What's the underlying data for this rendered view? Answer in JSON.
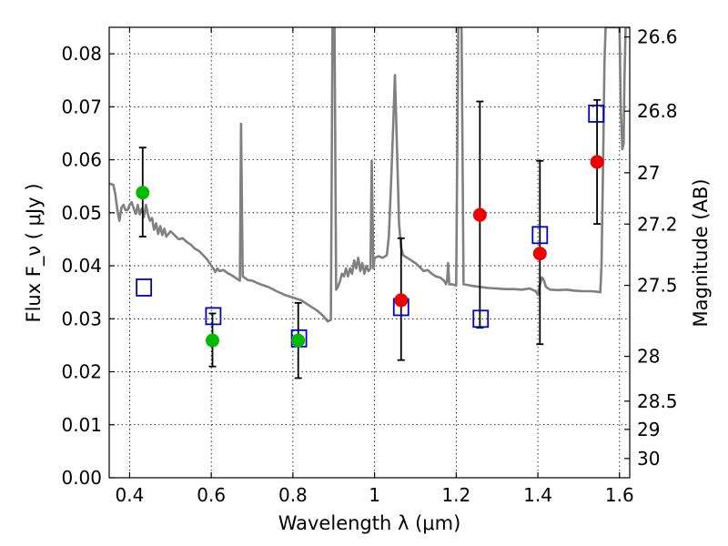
{
  "chart_data": {
    "type": "scatter",
    "title": "",
    "xlabel": "Wavelength  λ (μm)",
    "ylabel": "Flux  F_ν  ( μJy )",
    "ylabel_right": "Magnitude (AB)",
    "xlim": [
      0.35,
      1.625
    ],
    "ylim": [
      0.0,
      0.085
    ],
    "grid": true,
    "x_ticks": [
      0.4,
      0.6,
      0.8,
      1.0,
      1.2,
      1.4,
      1.6
    ],
    "x_tick_labels": [
      "0.4",
      "0.6",
      "0.8",
      "1",
      "1.2",
      "1.4",
      "1.6"
    ],
    "y_ticks": [
      0.0,
      0.01,
      0.02,
      0.03,
      0.04,
      0.05,
      0.06,
      0.07,
      0.08
    ],
    "y_tick_labels": [
      "0.00",
      "0.01",
      "0.02",
      "0.03",
      "0.04",
      "0.05",
      "0.06",
      "0.07",
      "0.08"
    ],
    "right_axis_ticks": [
      {
        "label": "26.6",
        "mag": 26.6
      },
      {
        "label": "26.8",
        "mag": 26.8
      },
      {
        "label": "27",
        "mag": 27.0
      },
      {
        "label": "27.2",
        "mag": 27.2
      },
      {
        "label": "27.5",
        "mag": 27.5
      },
      {
        "label": "28",
        "mag": 28.0
      },
      {
        "label": "28.5",
        "mag": 28.5
      },
      {
        "label": "29",
        "mag": 29.0
      },
      {
        "label": "30",
        "mag": 30.0
      }
    ],
    "series": [
      {
        "marker": "line",
        "color": "#808080",
        "points": [
          [
            0.35,
            0.0555
          ],
          [
            0.36,
            0.0553
          ],
          [
            0.365,
            0.0535
          ],
          [
            0.37,
            0.0505
          ],
          [
            0.375,
            0.0485
          ],
          [
            0.38,
            0.051
          ],
          [
            0.385,
            0.0515
          ],
          [
            0.39,
            0.0505
          ],
          [
            0.395,
            0.0505
          ],
          [
            0.4,
            0.0515
          ],
          [
            0.405,
            0.052
          ],
          [
            0.41,
            0.0508
          ],
          [
            0.415,
            0.0498
          ],
          [
            0.42,
            0.0515
          ],
          [
            0.425,
            0.0497
          ],
          [
            0.43,
            0.0508
          ],
          [
            0.435,
            0.0492
          ],
          [
            0.44,
            0.0515
          ],
          [
            0.445,
            0.0497
          ],
          [
            0.45,
            0.0485
          ],
          [
            0.455,
            0.049
          ],
          [
            0.46,
            0.0468
          ],
          [
            0.465,
            0.048
          ],
          [
            0.47,
            0.046
          ],
          [
            0.475,
            0.0475
          ],
          [
            0.48,
            0.0458
          ],
          [
            0.485,
            0.047
          ],
          [
            0.49,
            0.0455
          ],
          [
            0.495,
            0.046
          ],
          [
            0.5,
            0.0465
          ],
          [
            0.51,
            0.0458
          ],
          [
            0.52,
            0.045
          ],
          [
            0.53,
            0.0452
          ],
          [
            0.54,
            0.0445
          ],
          [
            0.55,
            0.044
          ],
          [
            0.56,
            0.0432
          ],
          [
            0.57,
            0.0428
          ],
          [
            0.58,
            0.042
          ],
          [
            0.59,
            0.0412
          ],
          [
            0.6,
            0.04
          ],
          [
            0.605,
            0.0395
          ],
          [
            0.61,
            0.0388
          ],
          [
            0.615,
            0.0395
          ],
          [
            0.62,
            0.039
          ],
          [
            0.63,
            0.0392
          ],
          [
            0.64,
            0.0386
          ],
          [
            0.65,
            0.0382
          ],
          [
            0.66,
            0.0377
          ],
          [
            0.67,
            0.0372
          ],
          [
            0.673,
            0.0668
          ],
          [
            0.677,
            0.038
          ],
          [
            0.69,
            0.0373
          ],
          [
            0.7,
            0.0372
          ],
          [
            0.72,
            0.0365
          ],
          [
            0.74,
            0.036
          ],
          [
            0.76,
            0.0352
          ],
          [
            0.78,
            0.0345
          ],
          [
            0.8,
            0.034
          ],
          [
            0.82,
            0.0335
          ],
          [
            0.84,
            0.0325
          ],
          [
            0.86,
            0.0315
          ],
          [
            0.875,
            0.0305
          ],
          [
            0.885,
            0.0295
          ],
          [
            0.893,
            0.0298
          ],
          [
            0.897,
            0.085
          ],
          [
            0.902,
            0.085
          ],
          [
            0.906,
            0.0355
          ],
          [
            0.91,
            0.036
          ],
          [
            0.915,
            0.037
          ],
          [
            0.92,
            0.0385
          ],
          [
            0.925,
            0.038
          ],
          [
            0.93,
            0.0395
          ],
          [
            0.935,
            0.038
          ],
          [
            0.94,
            0.0395
          ],
          [
            0.945,
            0.0385
          ],
          [
            0.95,
            0.041
          ],
          [
            0.955,
            0.0395
          ],
          [
            0.96,
            0.0415
          ],
          [
            0.965,
            0.039
          ],
          [
            0.97,
            0.0405
          ],
          [
            0.975,
            0.0385
          ],
          [
            0.98,
            0.04
          ],
          [
            0.985,
            0.039
          ],
          [
            0.99,
            0.0395
          ],
          [
            0.993,
            0.0598
          ],
          [
            0.997,
            0.0395
          ],
          [
            1.0,
            0.0415
          ],
          [
            1.01,
            0.0418
          ],
          [
            1.02,
            0.0415
          ],
          [
            1.03,
            0.042
          ],
          [
            1.035,
            0.0455
          ],
          [
            1.04,
            0.055
          ],
          [
            1.045,
            0.065
          ],
          [
            1.05,
            0.076
          ],
          [
            1.055,
            0.062
          ],
          [
            1.06,
            0.048
          ],
          [
            1.065,
            0.0435
          ],
          [
            1.07,
            0.042
          ],
          [
            1.08,
            0.0415
          ],
          [
            1.09,
            0.041
          ],
          [
            1.1,
            0.0405
          ],
          [
            1.11,
            0.0398
          ],
          [
            1.12,
            0.039
          ],
          [
            1.13,
            0.0392
          ],
          [
            1.14,
            0.0385
          ],
          [
            1.15,
            0.038
          ],
          [
            1.16,
            0.0378
          ],
          [
            1.17,
            0.0372
          ],
          [
            1.175,
            0.0365
          ],
          [
            1.178,
            0.0375
          ],
          [
            1.18,
            0.0405
          ],
          [
            1.183,
            0.0365
          ],
          [
            1.19,
            0.0365
          ],
          [
            1.2,
            0.0363
          ],
          [
            1.205,
            0.085
          ],
          [
            1.213,
            0.085
          ],
          [
            1.218,
            0.0365
          ],
          [
            1.24,
            0.0362
          ],
          [
            1.26,
            0.036
          ],
          [
            1.28,
            0.0358
          ],
          [
            1.3,
            0.0357
          ],
          [
            1.32,
            0.0356
          ],
          [
            1.34,
            0.0356
          ],
          [
            1.36,
            0.0355
          ],
          [
            1.38,
            0.0357
          ],
          [
            1.395,
            0.0352
          ],
          [
            1.4,
            0.0345
          ],
          [
            1.405,
            0.0365
          ],
          [
            1.41,
            0.0378
          ],
          [
            1.415,
            0.0372
          ],
          [
            1.42,
            0.036
          ],
          [
            1.43,
            0.0355
          ],
          [
            1.45,
            0.0354
          ],
          [
            1.47,
            0.0355
          ],
          [
            1.49,
            0.0353
          ],
          [
            1.51,
            0.0352
          ],
          [
            1.53,
            0.0352
          ],
          [
            1.545,
            0.0351
          ],
          [
            1.553,
            0.035
          ],
          [
            1.556,
            0.04
          ],
          [
            1.56,
            0.06
          ],
          [
            1.563,
            0.078
          ],
          [
            1.566,
            0.085
          ],
          [
            1.6,
            0.085
          ],
          [
            1.603,
            0.07
          ],
          [
            1.607,
            0.062
          ],
          [
            1.61,
            0.063
          ],
          [
            1.612,
            0.075
          ],
          [
            1.615,
            0.085
          ],
          [
            1.625,
            0.085
          ]
        ]
      },
      {
        "marker": "circle",
        "color": "#00bb00",
        "points": [
          {
            "x": 0.432,
            "y": 0.0538,
            "err_low": 0.0455,
            "err_high": 0.0623
          },
          {
            "x": 0.603,
            "y": 0.0259,
            "err_low": 0.021,
            "err_high": 0.031
          },
          {
            "x": 0.813,
            "y": 0.0259,
            "err_low": 0.0188,
            "err_high": 0.033
          }
        ]
      },
      {
        "marker": "circle",
        "color": "#ee0000",
        "points": [
          {
            "x": 1.065,
            "y": 0.0335,
            "err_low": 0.0222,
            "err_high": 0.0452
          },
          {
            "x": 1.258,
            "y": 0.0496,
            "err_low": 0.0283,
            "err_high": 0.071
          },
          {
            "x": 1.405,
            "y": 0.0423,
            "err_low": 0.0252,
            "err_high": 0.0598
          },
          {
            "x": 1.545,
            "y": 0.0596,
            "err_low": 0.0479,
            "err_high": 0.0713
          }
        ]
      },
      {
        "marker": "square",
        "color": "#0000cc",
        "points": [
          {
            "x": 0.435,
            "y": 0.0359
          },
          {
            "x": 0.605,
            "y": 0.0305
          },
          {
            "x": 0.815,
            "y": 0.0263
          },
          {
            "x": 1.065,
            "y": 0.0322
          },
          {
            "x": 1.26,
            "y": 0.03
          },
          {
            "x": 1.405,
            "y": 0.0458
          },
          {
            "x": 1.543,
            "y": 0.0687
          }
        ]
      }
    ]
  }
}
